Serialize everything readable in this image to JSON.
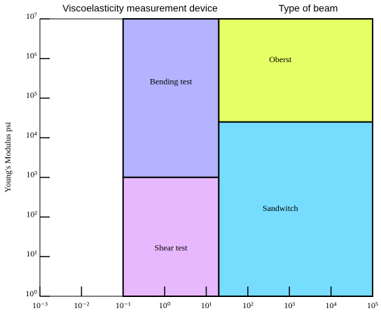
{
  "chart_data": {
    "type": "region",
    "headers": [
      "Viscoelasticity measurement device",
      "Type of beam"
    ],
    "ylabel": "Young's Modulus   psi",
    "xscale": "log",
    "yscale": "log",
    "xlim": [
      0.001,
      100000
    ],
    "ylim": [
      1,
      10000000
    ],
    "xticks": [
      {
        "value": 0.001,
        "label": "10⁻³"
      },
      {
        "value": 0.01,
        "label": "10⁻²"
      },
      {
        "value": 0.1,
        "label": "10⁻¹"
      },
      {
        "value": 1,
        "label": "10⁰"
      },
      {
        "value": 10,
        "label": "10¹"
      },
      {
        "value": 100,
        "label": "10²"
      },
      {
        "value": 1000,
        "label": "10³"
      },
      {
        "value": 10000,
        "label": "10⁴"
      },
      {
        "value": 100000,
        "label": "10⁵"
      }
    ],
    "yticks": [
      {
        "value": 1,
        "label": "10⁰"
      },
      {
        "value": 10,
        "label": "10¹"
      },
      {
        "value": 100,
        "label": "10²"
      },
      {
        "value": 1000,
        "label": "10³"
      },
      {
        "value": 10000,
        "label": "10⁴"
      },
      {
        "value": 100000,
        "label": "10⁵"
      },
      {
        "value": 1000000,
        "label": "10⁶"
      },
      {
        "value": 10000000,
        "label": "10⁷"
      }
    ],
    "regions": [
      {
        "name": "Bending test",
        "color": "#b3b3ff",
        "x0": 0.1,
        "x1": 20,
        "y0": 1000,
        "y1": 10000000
      },
      {
        "name": "Shear test",
        "color": "#e8b8ff",
        "x0": 0.1,
        "x1": 20,
        "y0": 1,
        "y1": 1000
      },
      {
        "name": "Oberst",
        "color": "#e6ff66",
        "x0": 20,
        "x1": 100000,
        "y0": 25000,
        "y1": 10000000
      },
      {
        "name": "Sandwitch",
        "color": "#77ddff",
        "x0": 20,
        "x1": 100000,
        "y0": 1,
        "y1": 25000
      }
    ]
  }
}
